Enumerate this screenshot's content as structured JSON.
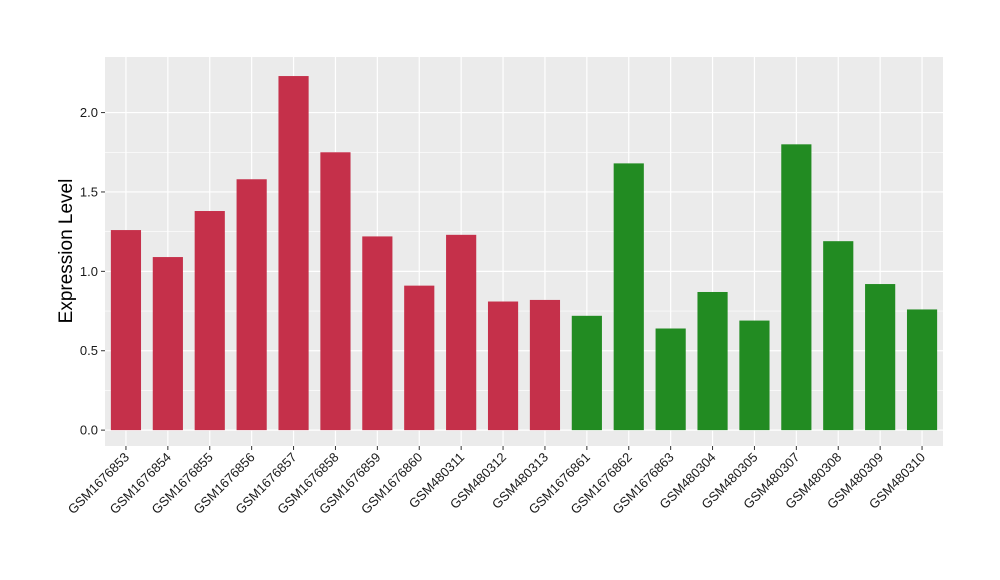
{
  "chart_data": {
    "type": "bar",
    "title": "",
    "xlabel": "",
    "ylabel": "Expression Level",
    "ylim": [
      -0.1,
      2.35
    ],
    "yticks": [
      "0.0",
      "0.5",
      "1.0",
      "1.5",
      "2.0"
    ],
    "ytick_values": [
      0.0,
      0.5,
      1.0,
      1.5,
      2.0
    ],
    "grid": true,
    "legend": "none",
    "colors": {
      "group1": "#c5304a",
      "group2": "#228b22",
      "panel": "#ebebeb",
      "gridline": "#ffffff"
    },
    "categories": [
      "GSM1676853",
      "GSM1676854",
      "GSM1676855",
      "GSM1676856",
      "GSM1676857",
      "GSM1676858",
      "GSM1676859",
      "GSM1676860",
      "GSM480311",
      "GSM480312",
      "GSM480313",
      "GSM1676861",
      "GSM1676862",
      "GSM1676863",
      "GSM480304",
      "GSM480305",
      "GSM480307",
      "GSM480308",
      "GSM480309",
      "GSM480310"
    ],
    "values": [
      1.26,
      1.09,
      1.38,
      1.58,
      2.23,
      1.75,
      1.22,
      0.91,
      1.23,
      0.81,
      0.82,
      0.72,
      1.68,
      0.64,
      0.87,
      0.69,
      1.8,
      1.19,
      0.92,
      0.76
    ],
    "bar_groups": [
      "group1",
      "group1",
      "group1",
      "group1",
      "group1",
      "group1",
      "group1",
      "group1",
      "group1",
      "group1",
      "group1",
      "group2",
      "group2",
      "group2",
      "group2",
      "group2",
      "group2",
      "group2",
      "group2",
      "group2"
    ]
  }
}
